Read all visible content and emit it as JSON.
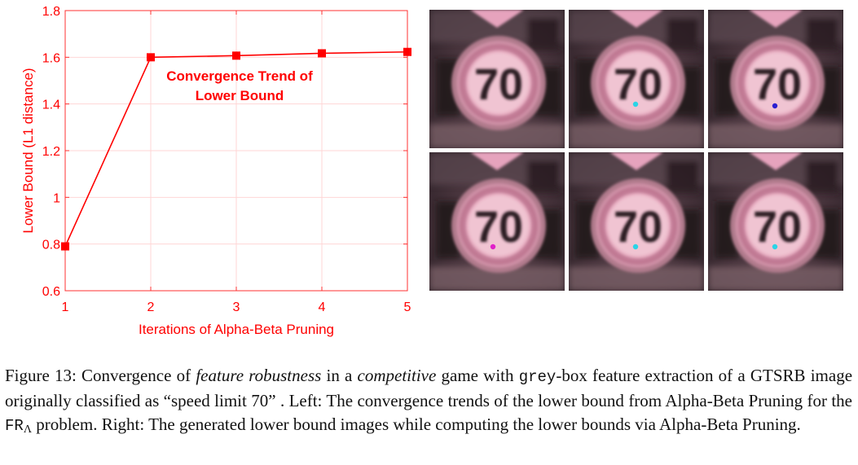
{
  "chart_data": {
    "type": "line",
    "title": "Convergence Trend of Lower Bound",
    "title_lines": [
      "Convergence Trend of",
      "Lower Bound"
    ],
    "xlabel": "Iterations of Alpha-Beta Pruning",
    "ylabel": "Lower Bound (L1 distance)",
    "x": [
      1,
      2,
      3,
      4,
      5
    ],
    "y": [
      0.79,
      1.6,
      1.607,
      1.617,
      1.623
    ],
    "xlim": [
      1,
      5
    ],
    "ylim": [
      0.6,
      1.8
    ],
    "xticks": [
      "1",
      "2",
      "3",
      "4",
      "5"
    ],
    "yticks": [
      "0.6",
      "0.8",
      "1",
      "1.2",
      "1.4",
      "1.6",
      "1.8"
    ],
    "grid": true,
    "color": "#ff0000"
  },
  "image_grid": {
    "sign_text": "70",
    "tiles": [
      {
        "dot": null
      },
      {
        "dot": "#2ad4e6"
      },
      {
        "dot": "#2a1fd0"
      },
      {
        "dot": "#e020c8"
      },
      {
        "dot": "#2ad4e6"
      },
      {
        "dot": "#2ad4e6"
      }
    ]
  },
  "caption": {
    "label": "Figure 13:",
    "t1": " Convergence of ",
    "em1": "feature robustness",
    "t2": " in a ",
    "em2": "competitive",
    "t3": " game with ",
    "mono1": "grey",
    "t4": "-box feature extraction of a GTSRB image originally classified as “speed limit 70” . Left: The convergence trends of the lower bound from Alpha-Beta Pruning for the ",
    "mono2": "FR",
    "sub": "Λ",
    "t5": " problem. Right: The generated lower bound images while computing the lower bounds via Alpha-Beta Pruning."
  }
}
